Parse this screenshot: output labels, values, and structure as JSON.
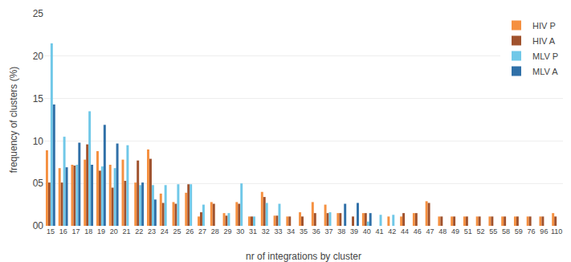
{
  "chart_data": {
    "type": "bar",
    "x_label": "nr of integrations by cluster",
    "y_label": "frequency of clusters (%)",
    "categories": [
      15,
      16,
      17,
      18,
      19,
      20,
      21,
      22,
      23,
      24,
      25,
      26,
      27,
      28,
      29,
      30,
      31,
      32,
      33,
      34,
      35,
      36,
      37,
      38,
      39,
      40,
      41,
      42,
      44,
      46,
      47,
      48,
      49,
      51,
      52,
      55,
      58,
      59,
      76,
      96,
      110
    ],
    "series": [
      {
        "name": "HIV P",
        "color": "#f59040",
        "values": [
          8.9,
          6.8,
          7.2,
          7.8,
          8.8,
          7.2,
          7.8,
          5.1,
          9.0,
          3.8,
          2.8,
          3.9,
          1.1,
          2.8,
          1.5,
          2.8,
          1.1,
          4.0,
          1.2,
          1.1,
          1.6,
          2.8,
          2.5,
          1.5,
          0.0,
          1.5,
          0.0,
          1.1,
          1.1,
          1.5,
          2.9,
          1.1,
          1.1,
          1.1,
          1.1,
          1.1,
          1.1,
          1.1,
          1.1,
          1.1,
          1.5
        ]
      },
      {
        "name": "HIV A",
        "color": "#a0522d",
        "values": [
          5.1,
          5.1,
          7.1,
          9.6,
          6.5,
          4.5,
          5.3,
          7.7,
          7.9,
          2.7,
          2.6,
          4.9,
          1.6,
          2.6,
          1.2,
          2.6,
          1.1,
          3.4,
          1.2,
          1.1,
          1.1,
          1.5,
          1.5,
          1.5,
          1.1,
          1.5,
          0.0,
          0.0,
          1.5,
          1.5,
          2.7,
          1.1,
          1.1,
          1.1,
          1.1,
          1.1,
          1.1,
          1.1,
          1.1,
          1.1,
          1.1
        ]
      },
      {
        "name": "MLV P",
        "color": "#70c8e8",
        "values": [
          21.5,
          10.5,
          7.2,
          13.5,
          7.0,
          6.8,
          9.5,
          4.8,
          4.8,
          4.8,
          4.9,
          4.9,
          2.5,
          0.0,
          1.5,
          5.0,
          1.1,
          2.7,
          2.6,
          0.0,
          0.0,
          0.0,
          1.6,
          0.0,
          0.0,
          0.5,
          1.3,
          1.3,
          0.0,
          0.0,
          0.0,
          0.0,
          0.0,
          0.0,
          0.0,
          0.0,
          0.0,
          0.0,
          0.0,
          0.0,
          0.0
        ]
      },
      {
        "name": "MLV A",
        "color": "#3070a8",
        "values": [
          14.3,
          6.9,
          9.8,
          7.2,
          11.9,
          9.7,
          0.0,
          5.1,
          3.1,
          0.0,
          0.0,
          0.0,
          0.0,
          0.0,
          0.0,
          0.0,
          0.0,
          0.0,
          0.0,
          0.0,
          0.0,
          0.0,
          0.0,
          2.6,
          2.7,
          1.5,
          0.0,
          0.0,
          0.0,
          0.0,
          0.0,
          0.0,
          0.0,
          0.0,
          0.0,
          0.0,
          0.0,
          0.0,
          0.0,
          0.0,
          0.0
        ]
      }
    ],
    "ylim": [
      0,
      25
    ],
    "yticks": [
      {
        "value": 0,
        "label": "00"
      },
      {
        "value": 5,
        "label": "05"
      },
      {
        "value": 10,
        "label": "10"
      },
      {
        "value": 15,
        "label": "15"
      },
      {
        "value": 20,
        "label": "20"
      },
      {
        "value": 25,
        "label": "25"
      }
    ],
    "grid": true,
    "legend": "upper right"
  }
}
